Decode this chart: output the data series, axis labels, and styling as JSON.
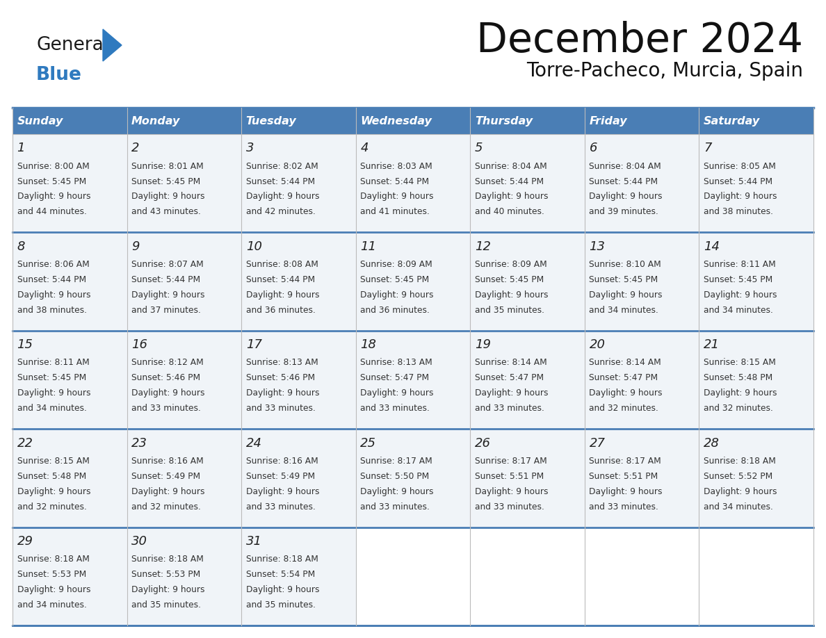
{
  "title": "December 2024",
  "subtitle": "Torre-Pacheco, Murcia, Spain",
  "days_of_week": [
    "Sunday",
    "Monday",
    "Tuesday",
    "Wednesday",
    "Thursday",
    "Friday",
    "Saturday"
  ],
  "header_bg": "#4a7eb5",
  "header_text": "#ffffff",
  "cell_bg": "#f0f4f8",
  "empty_cell_bg": "#ffffff",
  "border_color": "#4a7eb5",
  "row_border_color": "#4a7eb5",
  "day_num_color": "#222222",
  "info_color": "#333333",
  "title_color": "#111111",
  "logo_black": "#1a1a1a",
  "logo_blue": "#2f7abf",
  "calendar_data": [
    [
      {
        "day": 1,
        "sunrise": "8:00 AM",
        "sunset": "5:45 PM",
        "hours": "9 hours",
        "minutes": "and 44 minutes."
      },
      {
        "day": 2,
        "sunrise": "8:01 AM",
        "sunset": "5:45 PM",
        "hours": "9 hours",
        "minutes": "and 43 minutes."
      },
      {
        "day": 3,
        "sunrise": "8:02 AM",
        "sunset": "5:44 PM",
        "hours": "9 hours",
        "minutes": "and 42 minutes."
      },
      {
        "day": 4,
        "sunrise": "8:03 AM",
        "sunset": "5:44 PM",
        "hours": "9 hours",
        "minutes": "and 41 minutes."
      },
      {
        "day": 5,
        "sunrise": "8:04 AM",
        "sunset": "5:44 PM",
        "hours": "9 hours",
        "minutes": "and 40 minutes."
      },
      {
        "day": 6,
        "sunrise": "8:04 AM",
        "sunset": "5:44 PM",
        "hours": "9 hours",
        "minutes": "and 39 minutes."
      },
      {
        "day": 7,
        "sunrise": "8:05 AM",
        "sunset": "5:44 PM",
        "hours": "9 hours",
        "minutes": "and 38 minutes."
      }
    ],
    [
      {
        "day": 8,
        "sunrise": "8:06 AM",
        "sunset": "5:44 PM",
        "hours": "9 hours",
        "minutes": "and 38 minutes."
      },
      {
        "day": 9,
        "sunrise": "8:07 AM",
        "sunset": "5:44 PM",
        "hours": "9 hours",
        "minutes": "and 37 minutes."
      },
      {
        "day": 10,
        "sunrise": "8:08 AM",
        "sunset": "5:44 PM",
        "hours": "9 hours",
        "minutes": "and 36 minutes."
      },
      {
        "day": 11,
        "sunrise": "8:09 AM",
        "sunset": "5:45 PM",
        "hours": "9 hours",
        "minutes": "and 36 minutes."
      },
      {
        "day": 12,
        "sunrise": "8:09 AM",
        "sunset": "5:45 PM",
        "hours": "9 hours",
        "minutes": "and 35 minutes."
      },
      {
        "day": 13,
        "sunrise": "8:10 AM",
        "sunset": "5:45 PM",
        "hours": "9 hours",
        "minutes": "and 34 minutes."
      },
      {
        "day": 14,
        "sunrise": "8:11 AM",
        "sunset": "5:45 PM",
        "hours": "9 hours",
        "minutes": "and 34 minutes."
      }
    ],
    [
      {
        "day": 15,
        "sunrise": "8:11 AM",
        "sunset": "5:45 PM",
        "hours": "9 hours",
        "minutes": "and 34 minutes."
      },
      {
        "day": 16,
        "sunrise": "8:12 AM",
        "sunset": "5:46 PM",
        "hours": "9 hours",
        "minutes": "and 33 minutes."
      },
      {
        "day": 17,
        "sunrise": "8:13 AM",
        "sunset": "5:46 PM",
        "hours": "9 hours",
        "minutes": "and 33 minutes."
      },
      {
        "day": 18,
        "sunrise": "8:13 AM",
        "sunset": "5:47 PM",
        "hours": "9 hours",
        "minutes": "and 33 minutes."
      },
      {
        "day": 19,
        "sunrise": "8:14 AM",
        "sunset": "5:47 PM",
        "hours": "9 hours",
        "minutes": "and 33 minutes."
      },
      {
        "day": 20,
        "sunrise": "8:14 AM",
        "sunset": "5:47 PM",
        "hours": "9 hours",
        "minutes": "and 32 minutes."
      },
      {
        "day": 21,
        "sunrise": "8:15 AM",
        "sunset": "5:48 PM",
        "hours": "9 hours",
        "minutes": "and 32 minutes."
      }
    ],
    [
      {
        "day": 22,
        "sunrise": "8:15 AM",
        "sunset": "5:48 PM",
        "hours": "9 hours",
        "minutes": "and 32 minutes."
      },
      {
        "day": 23,
        "sunrise": "8:16 AM",
        "sunset": "5:49 PM",
        "hours": "9 hours",
        "minutes": "and 32 minutes."
      },
      {
        "day": 24,
        "sunrise": "8:16 AM",
        "sunset": "5:49 PM",
        "hours": "9 hours",
        "minutes": "and 33 minutes."
      },
      {
        "day": 25,
        "sunrise": "8:17 AM",
        "sunset": "5:50 PM",
        "hours": "9 hours",
        "minutes": "and 33 minutes."
      },
      {
        "day": 26,
        "sunrise": "8:17 AM",
        "sunset": "5:51 PM",
        "hours": "9 hours",
        "minutes": "and 33 minutes."
      },
      {
        "day": 27,
        "sunrise": "8:17 AM",
        "sunset": "5:51 PM",
        "hours": "9 hours",
        "minutes": "and 33 minutes."
      },
      {
        "day": 28,
        "sunrise": "8:18 AM",
        "sunset": "5:52 PM",
        "hours": "9 hours",
        "minutes": "and 34 minutes."
      }
    ],
    [
      {
        "day": 29,
        "sunrise": "8:18 AM",
        "sunset": "5:53 PM",
        "hours": "9 hours",
        "minutes": "and 34 minutes."
      },
      {
        "day": 30,
        "sunrise": "8:18 AM",
        "sunset": "5:53 PM",
        "hours": "9 hours",
        "minutes": "and 35 minutes."
      },
      {
        "day": 31,
        "sunrise": "8:18 AM",
        "sunset": "5:54 PM",
        "hours": "9 hours",
        "minutes": "and 35 minutes."
      },
      null,
      null,
      null,
      null
    ]
  ]
}
